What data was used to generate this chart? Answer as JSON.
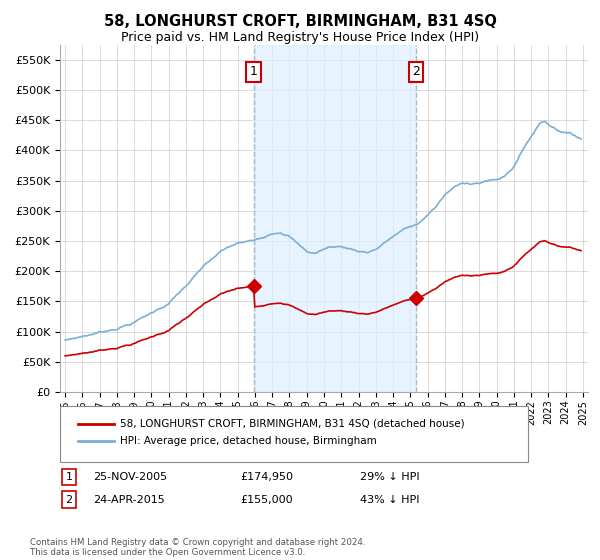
{
  "title": "58, LONGHURST CROFT, BIRMINGHAM, B31 4SQ",
  "subtitle": "Price paid vs. HM Land Registry's House Price Index (HPI)",
  "red_label": "58, LONGHURST CROFT, BIRMINGHAM, B31 4SQ (detached house)",
  "blue_label": "HPI: Average price, detached house, Birmingham",
  "annotation1_date": "25-NOV-2005",
  "annotation1_price": 174950,
  "annotation1_text": "29% ↓ HPI",
  "annotation2_date": "24-APR-2015",
  "annotation2_price": 155000,
  "annotation2_text": "43% ↓ HPI",
  "footer": "Contains HM Land Registry data © Crown copyright and database right 2024.\nThis data is licensed under the Open Government Licence v3.0.",
  "ylim": [
    0,
    575000
  ],
  "yticks": [
    0,
    50000,
    100000,
    150000,
    200000,
    250000,
    300000,
    350000,
    400000,
    450000,
    500000,
    550000
  ],
  "background_color": "#ffffff",
  "grid_color": "#cccccc",
  "red_color": "#cc0000",
  "blue_color": "#7bafd4",
  "shade_color": "#ddeeff",
  "vline_color": "#aabbcc",
  "anno_box_color": "#cc0000"
}
